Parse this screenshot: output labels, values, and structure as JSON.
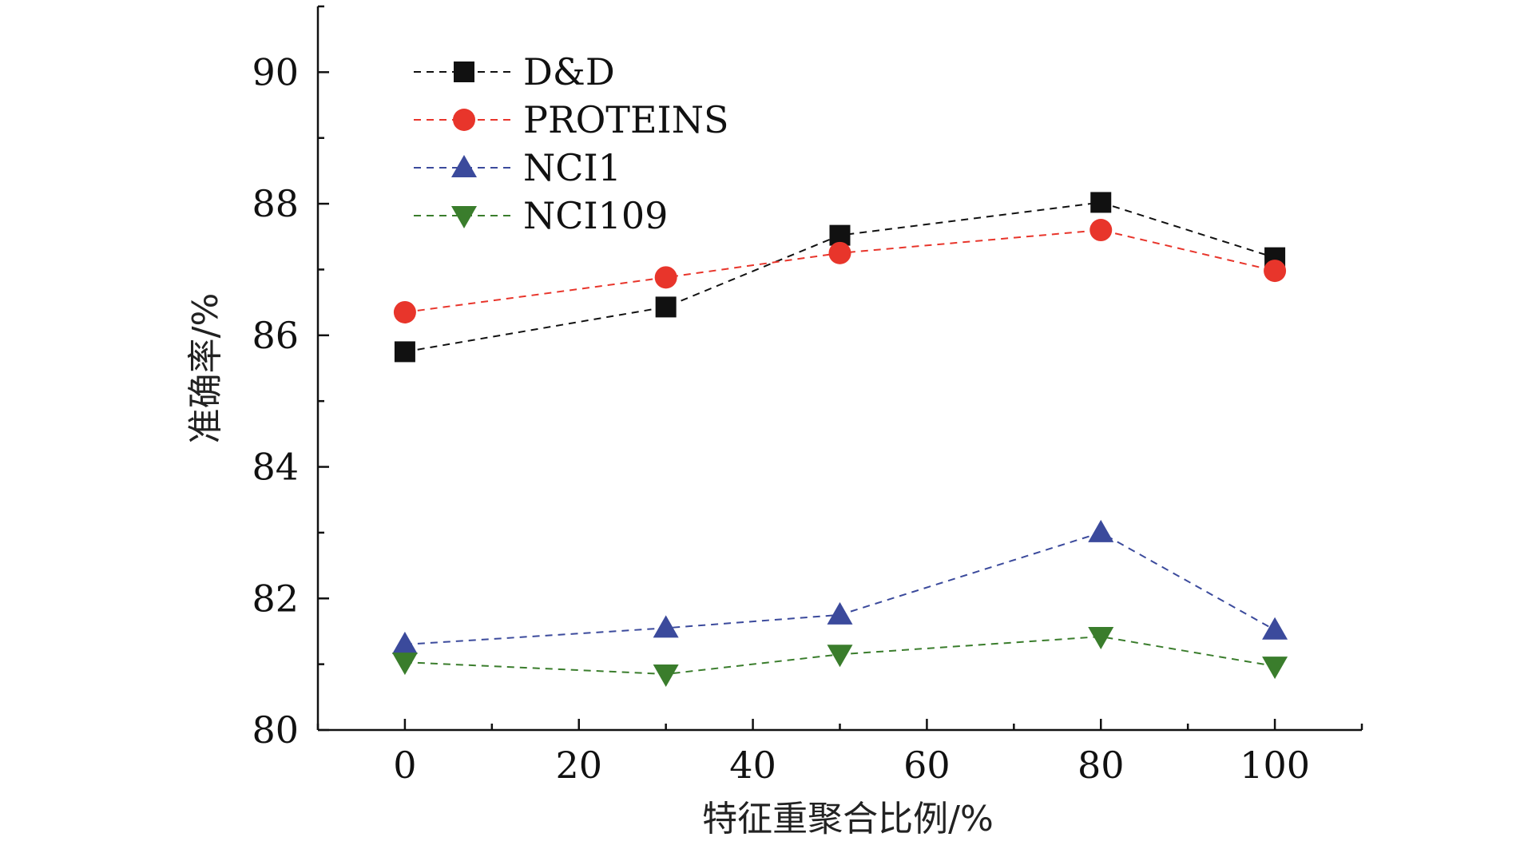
{
  "chart_data": {
    "type": "line",
    "title": "",
    "xlabel": "特征重聚合比例/%",
    "ylabel": "准确率/%",
    "xlim": [
      -10,
      110
    ],
    "ylim": [
      80,
      91
    ],
    "xticks": [
      0,
      20,
      40,
      60,
      80,
      100
    ],
    "yticks": [
      80,
      82,
      84,
      86,
      88,
      90
    ],
    "x": [
      0,
      30,
      50,
      80,
      100
    ],
    "legend_position": "top-left",
    "grid": false,
    "series": [
      {
        "name": "D&D",
        "color": "#111111",
        "marker": "square",
        "line_style": "dashed",
        "values": [
          85.75,
          86.43,
          87.52,
          88.02,
          87.18
        ]
      },
      {
        "name": "PROTEINS",
        "color": "#e8352b",
        "marker": "circle",
        "line_style": "dashed",
        "values": [
          86.35,
          86.88,
          87.25,
          87.6,
          86.98
        ]
      },
      {
        "name": "NCI1",
        "color": "#3b4a9c",
        "marker": "triangle-up",
        "line_style": "dashed",
        "values": [
          81.3,
          81.55,
          81.75,
          83.0,
          81.52
        ]
      },
      {
        "name": "NCI109",
        "color": "#3a7d2c",
        "marker": "triangle-down",
        "line_style": "dashed",
        "values": [
          81.03,
          80.85,
          81.15,
          81.42,
          80.97
        ]
      }
    ]
  }
}
